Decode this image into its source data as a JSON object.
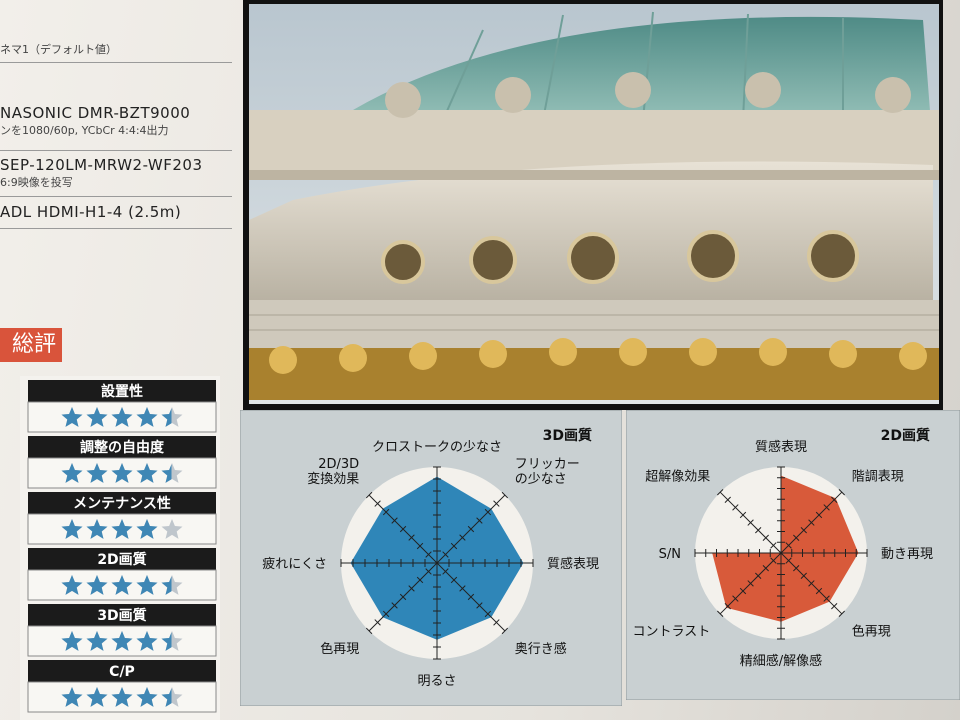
{
  "spec_list": [
    "ネマ1（デフォルト値）",
    "NASONIC DMR-BZT9000",
    "ンを1080/60p, YCbCr 4:4:4出力",
    "SEP-120LM-MRW2-WF203",
    "6:9映像を投写",
    "ADL HDMI-H1-4 (2.5m)"
  ],
  "section_label": "総評",
  "ratings": [
    {
      "label": "設置性",
      "stars": 4.5,
      "max": 5
    },
    {
      "label": "調整の自由度",
      "stars": 4.5,
      "max": 5
    },
    {
      "label": "メンテナンス性",
      "stars": 4,
      "max": 5
    },
    {
      "label": "2D画質",
      "stars": 4.5,
      "max": 5
    },
    {
      "label": "3D画質",
      "stars": 4.5,
      "max": 5
    },
    {
      "label": "C/P",
      "stars": 4.5,
      "max": 5
    }
  ],
  "radar_charts": [
    {
      "title": "3D画質",
      "color": "#2f86b8",
      "rmax": 5,
      "axes": [
        [
          "クロストークの少なさ"
        ],
        [
          "フリッカー",
          "の少なさ"
        ],
        [
          "質感表現"
        ],
        [
          "奥行き感"
        ],
        [
          "明るさ"
        ],
        [
          "色再現"
        ],
        [
          "疲れにくさ"
        ],
        [
          "2D/3D",
          "変換効果"
        ]
      ],
      "values": [
        4.5,
        4,
        4.5,
        4,
        4,
        4,
        4.5,
        4
      ]
    },
    {
      "title": "2D画質",
      "color": "#d85a3a",
      "rmax": 5,
      "axes": [
        [
          "質感表現"
        ],
        [
          "階調表現"
        ],
        [
          "動き再現"
        ],
        [
          "色再現"
        ],
        [
          "精細感/解像感"
        ],
        [
          "コントラスト"
        ],
        [
          "S/N"
        ],
        [
          "超解像効果"
        ]
      ],
      "values": [
        4.5,
        4.5,
        4.5,
        4,
        4,
        4.5,
        4,
        0
      ]
    }
  ]
}
